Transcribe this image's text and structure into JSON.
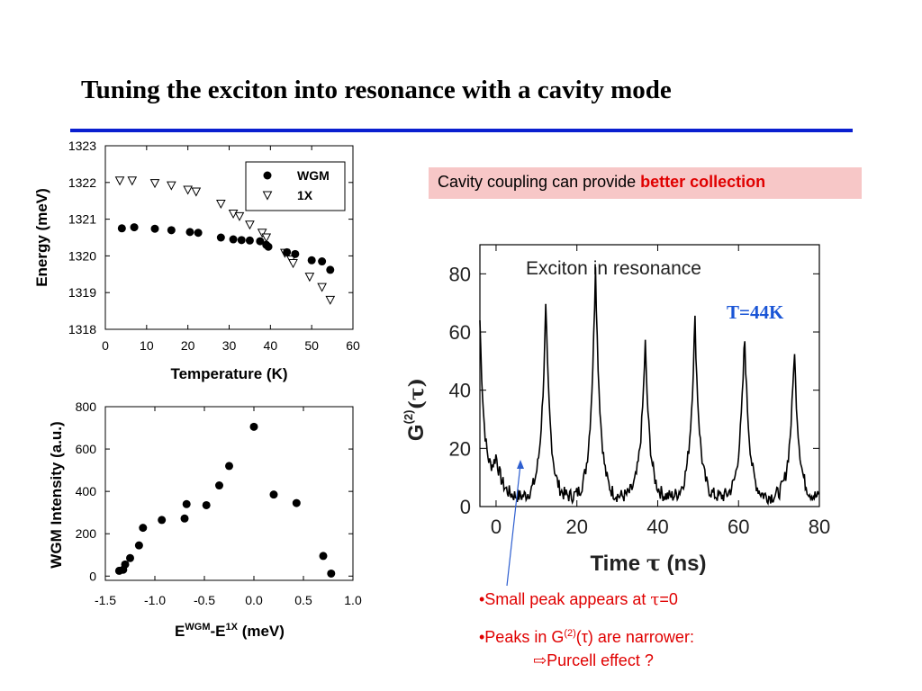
{
  "slide": {
    "title": "Tuning the exciton into resonance with a cavity mode",
    "callout_prefix": "Cavity coupling can provide ",
    "callout_highlight": "better collection",
    "bullet1_prefix": "•Small peak appears at ",
    "bullet1_tau": "τ",
    "bullet1_suffix": "=0",
    "bullet2_prefix": "•Peaks in G",
    "bullet2_sup": "(2)",
    "bullet2_mid": "(τ) are narrower:",
    "bullet3_arrow": "⇨",
    "bullet3_text": "Purcell effect ?",
    "rule_color": "#0a1fd0",
    "accent_red": "#e00000",
    "callout_bg": "#f7c7c7"
  },
  "chart_data": [
    {
      "type": "scatter",
      "xlabel": "Temperature (K)",
      "ylabel": "Energy (meV)",
      "xlim": [
        0,
        60
      ],
      "ylim": [
        1318,
        1323
      ],
      "xticks": [
        0,
        10,
        20,
        30,
        40,
        50,
        60
      ],
      "yticks": [
        1318,
        1319,
        1320,
        1321,
        1322,
        1323
      ],
      "legend": "top-right",
      "series": [
        {
          "name": "WGM",
          "marker": "filled-circle",
          "points": [
            [
              4,
              1320.75
            ],
            [
              7,
              1320.78
            ],
            [
              12,
              1320.74
            ],
            [
              16,
              1320.7
            ],
            [
              20.5,
              1320.65
            ],
            [
              22.5,
              1320.63
            ],
            [
              28,
              1320.5
            ],
            [
              31,
              1320.45
            ],
            [
              33,
              1320.43
            ],
            [
              35,
              1320.42
            ],
            [
              37.5,
              1320.4
            ],
            [
              39,
              1320.3
            ],
            [
              39.5,
              1320.25
            ],
            [
              44,
              1320.1
            ],
            [
              46,
              1320.05
            ],
            [
              50,
              1319.88
            ],
            [
              52.5,
              1319.85
            ],
            [
              54.5,
              1319.62
            ]
          ]
        },
        {
          "name": "1X",
          "marker": "open-down-triangle",
          "points": [
            [
              3.5,
              1322.05
            ],
            [
              6.5,
              1322.05
            ],
            [
              12,
              1321.98
            ],
            [
              16,
              1321.92
            ],
            [
              20,
              1321.8
            ],
            [
              22,
              1321.75
            ],
            [
              28,
              1321.42
            ],
            [
              31,
              1321.15
            ],
            [
              32.5,
              1321.08
            ],
            [
              35,
              1320.85
            ],
            [
              38,
              1320.63
            ],
            [
              39,
              1320.5
            ],
            [
              43.5,
              1320.08
            ],
            [
              45,
              1319.9
            ],
            [
              45.5,
              1319.8
            ],
            [
              49.5,
              1319.43
            ],
            [
              52.5,
              1319.15
            ],
            [
              54.5,
              1318.8
            ]
          ]
        }
      ]
    },
    {
      "type": "scatter",
      "xlabel_main": "E",
      "xlabel_sup1": "WGM",
      "xlabel_mid": "-E",
      "xlabel_sup2": "1X",
      "xlabel_end": " (meV)",
      "ylabel": "WGM Intensity (a.u.)",
      "xlim": [
        -1.5,
        1.0
      ],
      "ylim": [
        -20,
        800
      ],
      "xticks": [
        -1.5,
        -1.0,
        -0.5,
        0.0,
        0.5,
        1.0
      ],
      "xtick_labels": [
        "-1.5",
        "-1.0",
        "-0.5",
        "0.0",
        "0.5",
        "1.0"
      ],
      "yticks": [
        0,
        200,
        400,
        600,
        800
      ],
      "series": [
        {
          "marker": "filled-circle",
          "points": [
            [
              -1.36,
              25
            ],
            [
              -1.32,
              30
            ],
            [
              -1.3,
              55
            ],
            [
              -1.25,
              85
            ],
            [
              -1.16,
              145
            ],
            [
              -1.12,
              228
            ],
            [
              -0.93,
              265
            ],
            [
              -0.7,
              272
            ],
            [
              -0.68,
              340
            ],
            [
              -0.48,
              335
            ],
            [
              -0.35,
              428
            ],
            [
              -0.25,
              520
            ],
            [
              0.0,
              705
            ],
            [
              0.2,
              385
            ],
            [
              0.43,
              345
            ],
            [
              0.7,
              95
            ],
            [
              0.78,
              12
            ]
          ]
        }
      ]
    },
    {
      "type": "line",
      "title": "Exciton in resonance",
      "annotation": "T=44K",
      "xlabel_prefix": "Time ",
      "xlabel_tau": "τ",
      "xlabel_suffix": " (ns)",
      "ylabel_prefix": "G",
      "ylabel_sup": "(2)",
      "ylabel_arg": "(τ)",
      "xlim": [
        -4,
        80
      ],
      "ylim": [
        0,
        90
      ],
      "xticks": [
        0,
        20,
        40,
        60,
        80
      ],
      "yticks": [
        0,
        20,
        40,
        60,
        80
      ],
      "series": [
        {
          "peaks": [
            {
              "center": -4,
              "height": 60
            },
            {
              "center": 0,
              "height": 13
            },
            {
              "center": 12.3,
              "height": 66
            },
            {
              "center": 24.6,
              "height": 81
            },
            {
              "center": 36.9,
              "height": 54
            },
            {
              "center": 49.2,
              "height": 63
            },
            {
              "center": 61.5,
              "height": 57
            },
            {
              "center": 73.8,
              "height": 52
            }
          ],
          "baseline": 3
        }
      ]
    }
  ]
}
